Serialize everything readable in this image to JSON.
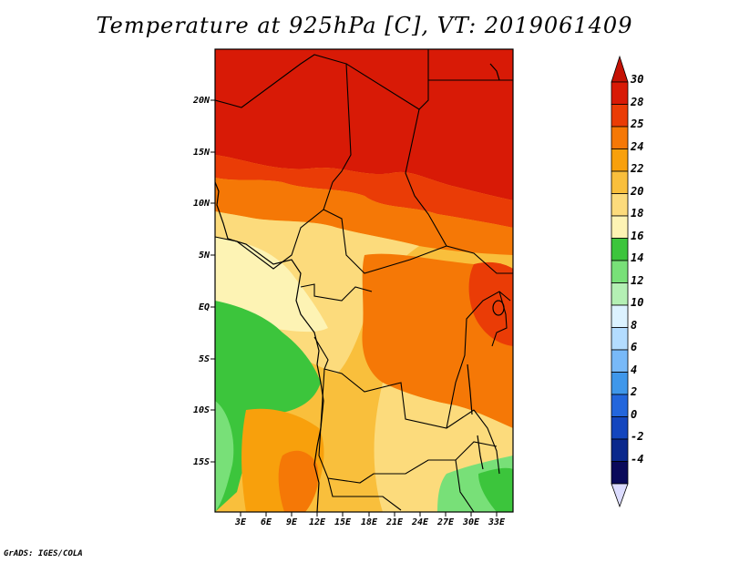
{
  "title": "Temperature at 925hPa [C], VT: 2019061409",
  "credit": "GrADS: IGES/COLA",
  "map": {
    "variable": "Temperature at 925hPa",
    "units": "C",
    "valid_time": "2019061409",
    "lon_range": [
      0,
      35
    ],
    "lat_range": [
      -20,
      25
    ],
    "lat_ticks": [
      "20N",
      "15N",
      "10N",
      "5N",
      "EQ",
      "5S",
      "10S",
      "15S"
    ],
    "lon_ticks": [
      "3E",
      "6E",
      "9E",
      "12E",
      "15E",
      "18E",
      "21E",
      "24E",
      "27E",
      "30E",
      "33E"
    ]
  },
  "colorbar": {
    "labels": [
      "30",
      "28",
      "25",
      "24",
      "22",
      "20",
      "18",
      "16",
      "14",
      "12",
      "10",
      "8",
      "6",
      "4",
      "2",
      "0",
      "-2",
      "-4"
    ],
    "colors": [
      "#d81a06",
      "#ea3c06",
      "#f57806",
      "#f8a00c",
      "#f9bf3c",
      "#fcdb7c",
      "#fdf3b4",
      "#3cc53c",
      "#78e078",
      "#b4f0b4",
      "#dcf2ff",
      "#b3dcff",
      "#78b9f8",
      "#3f97ea",
      "#2366dc",
      "#1446be",
      "#0a288c",
      "#0a0a5a"
    ],
    "top_arrow": "#c51205",
    "bottom_arrow": "#dcdcff"
  }
}
